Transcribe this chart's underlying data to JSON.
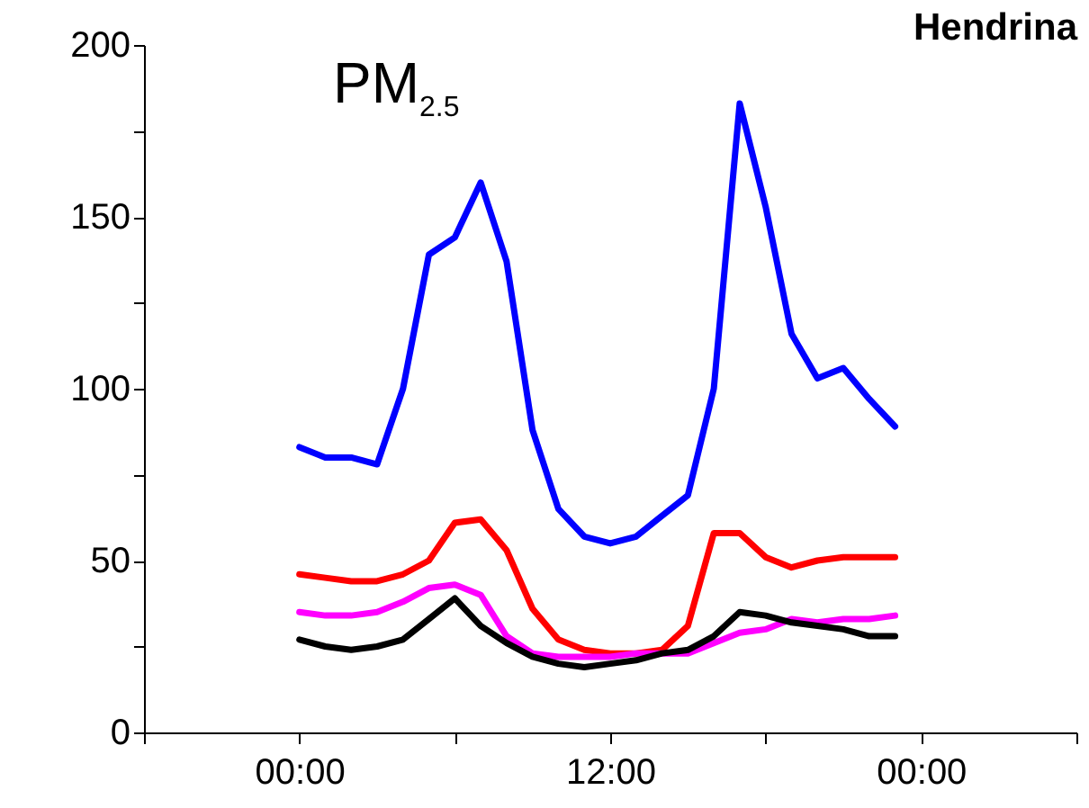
{
  "chart_data": {
    "type": "line",
    "title": "Hendrina",
    "annotations": [
      "PM$_{2.5}$"
    ],
    "x": [
      0,
      1,
      2,
      3,
      4,
      5,
      6,
      7,
      8,
      9,
      10,
      11,
      12,
      13,
      14,
      15,
      16,
      17,
      18,
      19,
      20,
      21,
      22,
      23
    ],
    "xlim": [
      -6,
      30
    ],
    "xticks": [
      {
        "value": -6,
        "label": null
      },
      {
        "value": 0,
        "label": "00:00"
      },
      {
        "value": 6,
        "label": null
      },
      {
        "value": 12,
        "label": "12:00"
      },
      {
        "value": 18,
        "label": null
      },
      {
        "value": 24,
        "label": "00:00"
      },
      {
        "value": 30,
        "label": null
      }
    ],
    "ylim": [
      0,
      200
    ],
    "yticks": [
      0,
      {
        "value": 25,
        "label": null
      },
      50,
      {
        "value": 75,
        "label": null
      },
      100,
      {
        "value": 125,
        "label": null
      },
      150,
      {
        "value": 175,
        "label": null
      },
      200
    ],
    "marker": "none",
    "line_style": "solid",
    "series": [
      {
        "color": "#0000ff",
        "values": [
          83,
          80,
          80,
          78,
          100,
          139,
          144,
          160,
          137,
          88,
          65,
          57,
          55,
          57,
          63,
          69,
          100,
          183,
          153,
          116,
          103,
          106,
          97,
          89
        ]
      },
      {
        "color": "#ff0000",
        "values": [
          46,
          45,
          44,
          44,
          46,
          50,
          61,
          62,
          53,
          36,
          27,
          24,
          23,
          23,
          24,
          31,
          58,
          58,
          51,
          48,
          50,
          51,
          51,
          51
        ]
      },
      {
        "color": "#ff00ff",
        "values": [
          35,
          34,
          34,
          35,
          38,
          42,
          43,
          40,
          28,
          23,
          22,
          22,
          22,
          23,
          23,
          23,
          26,
          29,
          30,
          33,
          32,
          33,
          33,
          34
        ]
      },
      {
        "color": "#000000",
        "values": [
          27,
          25,
          24,
          25,
          27,
          33,
          39,
          31,
          26,
          22,
          20,
          19,
          20,
          21,
          23,
          24,
          28,
          35,
          34,
          32,
          31,
          30,
          28,
          28
        ]
      }
    ]
  }
}
